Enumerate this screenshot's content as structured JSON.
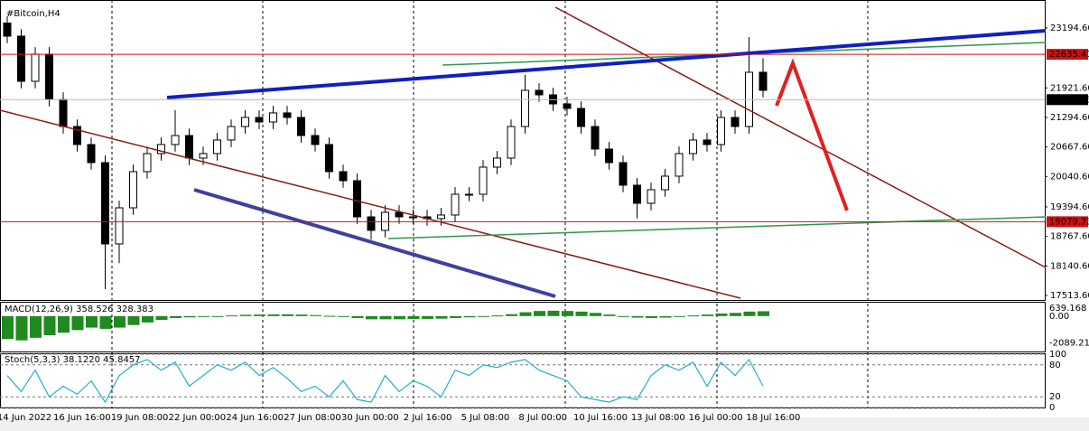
{
  "chart_data": {
    "type": "candlestick",
    "title": "#Bitcoin,H4",
    "open": [
      23300,
      23021,
      22062,
      22638,
      21678,
      21102,
      20719,
      20335,
      18608,
      19375,
      20143,
      20527,
      20719,
      20910,
      20431,
      20527,
      20815,
      21102,
      21294,
      21198,
      21391,
      21294,
      20910,
      20719,
      20143,
      19951,
      19183,
      18896,
      19279,
      19183,
      19183,
      19145,
      19222,
      19663,
      19663,
      20239,
      20431,
      21102,
      21870,
      21774,
      21582,
      21486,
      21102,
      20623,
      20335,
      19855,
      19471,
      19759,
      20047,
      20527,
      20815,
      20719,
      21294,
      21102,
      22254
    ],
    "high": [
      23450,
      23171,
      22788,
      22788,
      21828,
      21252,
      20869,
      20485,
      19525,
      20293,
      20677,
      20869,
      21450,
      21060,
      20677,
      20965,
      21252,
      21444,
      21444,
      21541,
      21541,
      21444,
      21060,
      20869,
      20293,
      20101,
      19333,
      19429,
      19429,
      19333,
      19333,
      19372,
      19813,
      19813,
      20389,
      20581,
      21252,
      22200,
      22020,
      21924,
      21732,
      21636,
      21252,
      20773,
      20485,
      20005,
      19909,
      20197,
      20677,
      20965,
      20965,
      21444,
      21444,
      23000,
      22550
    ],
    "low": [
      22871,
      21912,
      21912,
      21528,
      20952,
      20569,
      20185,
      17650,
      18200,
      19225,
      19993,
      20377,
      20569,
      20281,
      20281,
      20377,
      20665,
      20952,
      21048,
      21048,
      21144,
      20760,
      20569,
      19993,
      19801,
      19033,
      18700,
      18746,
      19033,
      19033,
      18995,
      18995,
      19072,
      19513,
      19513,
      20089,
      20281,
      20952,
      21624,
      21432,
      21336,
      20952,
      20473,
      20185,
      19705,
      19150,
      19321,
      19609,
      19897,
      20377,
      20569,
      20569,
      20952,
      20952,
      21720
    ],
    "close": [
      23021,
      22062,
      22638,
      21678,
      21102,
      20719,
      20335,
      18608,
      19375,
      20143,
      20527,
      20719,
      20910,
      20431,
      20527,
      20815,
      21102,
      21294,
      21198,
      21391,
      21294,
      20910,
      20719,
      20143,
      19951,
      19183,
      18896,
      19279,
      19183,
      19183,
      19145,
      19222,
      19663,
      19663,
      20239,
      20431,
      21102,
      21870,
      21774,
      21582,
      21486,
      21102,
      20623,
      20335,
      19855,
      19471,
      19759,
      20047,
      20527,
      20815,
      20719,
      21294,
      21102,
      22254,
      21870
    ],
    "ylim": [
      17398,
      23789
    ],
    "yticks": [
      {
        "value": 23194.6,
        "label": "23194.60"
      },
      {
        "value": 21921.6,
        "label": "21921.60"
      },
      {
        "value": 21294.6,
        "label": "21294.60"
      },
      {
        "value": 20667.6,
        "label": "20667.60"
      },
      {
        "value": 20040.6,
        "label": "20040.60"
      },
      {
        "value": 19394.6,
        "label": "19394.60"
      },
      {
        "value": 18767.6,
        "label": "18767.60"
      },
      {
        "value": 18140.6,
        "label": "18140.60"
      },
      {
        "value": 17513.6,
        "label": "17513.60"
      }
    ],
    "levels": [
      22635.41,
      19079.73
    ],
    "level_color": "#d01010",
    "last_price": 21672.53,
    "time_labels": [
      "14 Jun 2022",
      "16 Jun 16:00",
      "19 Jun 08:00",
      "22 Jun 00:00",
      "24 Jun 16:00",
      "27 Jun 08:00",
      "30 Jun 00:00",
      "2 Jul 16:00",
      "5 Jul 08:00",
      "8 Jul 00:00",
      "10 Jul 16:00",
      "13 Jul 08:00",
      "16 Jul 00:00",
      "18 Jul 16:00"
    ],
    "macd": {
      "label": "MACD(12,26,9) 358.526 328.383",
      "color": "#1f8a1f",
      "values": [
        -1800,
        -1900,
        -1700,
        -1500,
        -1300,
        -1100,
        -900,
        -1000,
        -900,
        -700,
        -500,
        -300,
        -150,
        -100,
        -50,
        0,
        50,
        100,
        120,
        130,
        140,
        120,
        80,
        20,
        -50,
        -150,
        -250,
        -250,
        -250,
        -230,
        -220,
        -200,
        -150,
        -100,
        -30,
        50,
        150,
        300,
        400,
        420,
        400,
        350,
        250,
        120,
        -20,
        -120,
        -150,
        -120,
        -50,
        50,
        120,
        200,
        250,
        350,
        380
      ],
      "ylim": [
        -2771,
        1048
      ],
      "yticks": [
        {
          "value": 639.168,
          "label": "639.168"
        },
        {
          "value": 0,
          "label": "0.00"
        },
        {
          "value": -2089.215,
          "label": "-2089.215"
        }
      ]
    },
    "stoch": {
      "label": "Stoch(5,3,3) 38.1220 45.8457",
      "color": "#20b0d0",
      "values": [
        60,
        30,
        70,
        20,
        40,
        25,
        50,
        10,
        60,
        80,
        90,
        70,
        85,
        40,
        60,
        80,
        70,
        85,
        60,
        75,
        55,
        30,
        40,
        20,
        50,
        15,
        10,
        60,
        30,
        50,
        40,
        20,
        70,
        60,
        80,
        75,
        85,
        90,
        70,
        60,
        50,
        20,
        15,
        10,
        20,
        15,
        60,
        80,
        70,
        85,
        40,
        85,
        60,
        90,
        40
      ],
      "ylim": [
        0,
        100
      ],
      "yticks": [
        100,
        80,
        20,
        0
      ]
    }
  }
}
